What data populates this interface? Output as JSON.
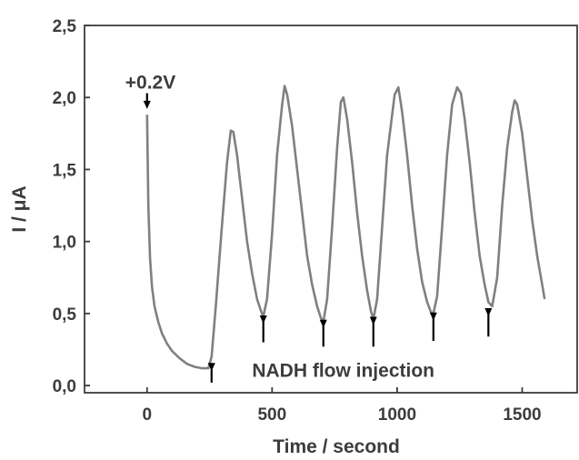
{
  "chart_data": {
    "type": "line",
    "xlabel": "Time / second",
    "ylabel": "I / μA",
    "xlim": [
      -250,
      1720
    ],
    "ylim": [
      -0.05,
      2.5
    ],
    "xticks": [
      0,
      500,
      1000,
      1500
    ],
    "xtick_labels": [
      "0",
      "500",
      "1000",
      "1500"
    ],
    "yticks": [
      0.0,
      0.5,
      1.0,
      1.5,
      2.0,
      2.5
    ],
    "ytick_labels": [
      "0,0",
      "0,5",
      "1,0",
      "1,5",
      "2,0",
      "2,5"
    ],
    "grid": false,
    "line_color": "#808080",
    "series": [
      {
        "x": [
          0,
          5,
          12,
          20,
          30,
          45,
          60,
          80,
          100,
          130,
          160,
          190,
          220,
          245,
          258,
          275,
          300,
          320,
          335,
          345,
          360,
          380,
          400,
          420,
          440,
          455,
          465,
          480,
          500,
          520,
          540,
          550,
          560,
          580,
          600,
          620,
          640,
          660,
          680,
          695,
          705,
          720,
          740,
          760,
          775,
          785,
          800,
          820,
          840,
          860,
          880,
          895,
          905,
          920,
          940,
          960,
          990,
          1005,
          1020,
          1040,
          1060,
          1080,
          1100,
          1120,
          1135,
          1145,
          1160,
          1180,
          1200,
          1220,
          1240,
          1255,
          1270,
          1290,
          1310,
          1330,
          1350,
          1365,
          1380,
          1400,
          1420,
          1440,
          1460,
          1470,
          1480,
          1500,
          1520,
          1540,
          1560,
          1580,
          1590
        ],
        "y": [
          1.88,
          1.25,
          0.88,
          0.68,
          0.55,
          0.44,
          0.36,
          0.29,
          0.24,
          0.19,
          0.15,
          0.13,
          0.12,
          0.12,
          0.2,
          0.55,
          1.12,
          1.55,
          1.77,
          1.76,
          1.6,
          1.3,
          1.0,
          0.78,
          0.6,
          0.52,
          0.48,
          0.6,
          1.05,
          1.6,
          1.95,
          2.08,
          2.02,
          1.8,
          1.5,
          1.2,
          0.9,
          0.7,
          0.55,
          0.47,
          0.44,
          0.6,
          1.1,
          1.65,
          1.97,
          2.0,
          1.85,
          1.55,
          1.2,
          0.9,
          0.66,
          0.52,
          0.46,
          0.6,
          1.1,
          1.6,
          2.02,
          2.07,
          1.9,
          1.6,
          1.25,
          0.95,
          0.72,
          0.58,
          0.51,
          0.5,
          0.62,
          1.1,
          1.6,
          1.95,
          2.07,
          2.03,
          1.85,
          1.55,
          1.2,
          0.9,
          0.7,
          0.58,
          0.55,
          0.75,
          1.25,
          1.65,
          1.9,
          1.98,
          1.95,
          1.75,
          1.45,
          1.15,
          0.9,
          0.7,
          0.6
        ]
      }
    ],
    "annotations": [
      {
        "text": "+0.2V",
        "x": 0,
        "arrow_from_y": 2.08,
        "arrow_to_y": 1.92
      },
      {
        "text": "NADH flow injection",
        "x": 420,
        "y": 0.06
      }
    ],
    "arrows": [
      {
        "x": 258,
        "y_top": 0.1,
        "y_bottom": 0.02
      },
      {
        "x": 465,
        "y_top": 0.43,
        "y_bottom": 0.3
      },
      {
        "x": 705,
        "y_top": 0.4,
        "y_bottom": 0.27
      },
      {
        "x": 905,
        "y_top": 0.42,
        "y_bottom": 0.27
      },
      {
        "x": 1145,
        "y_top": 0.45,
        "y_bottom": 0.31
      },
      {
        "x": 1365,
        "y_top": 0.48,
        "y_bottom": 0.34
      }
    ]
  }
}
